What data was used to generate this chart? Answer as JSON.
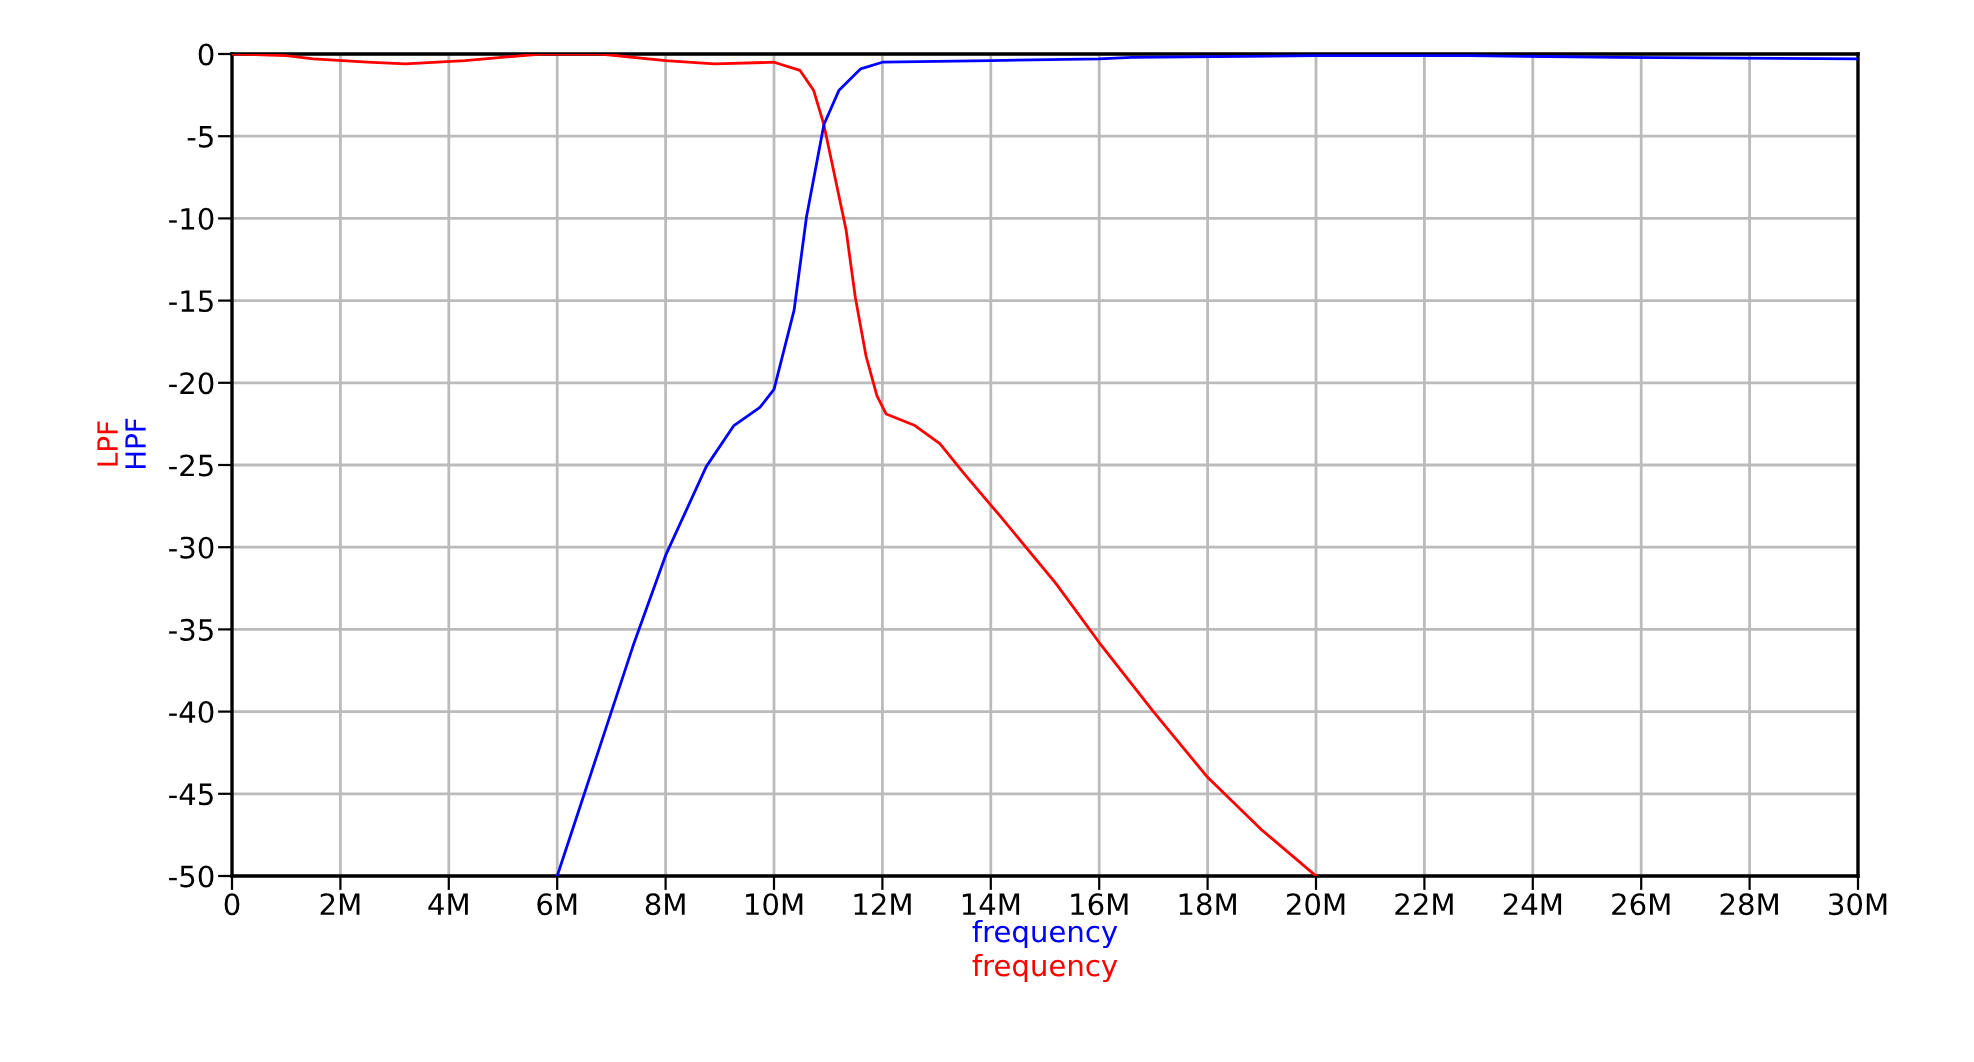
{
  "chart_data": {
    "type": "line",
    "xlabel": "frequency",
    "annotations": [
      "frequency"
    ],
    "x": [
      0,
      1000000,
      1500000,
      2500000,
      3200000,
      4300000,
      5700000,
      6800000,
      8000000,
      8900000,
      10000000,
      10480000,
      10730000,
      10920000,
      11100000,
      11330000,
      11500000,
      11700000,
      11900000,
      12070000,
      12600000,
      13060000,
      13500000,
      14170000,
      15200000,
      16000000,
      17000000,
      18000000,
      19000000,
      20000000
    ],
    "series": [
      {
        "name": "LPF",
        "color": "#ff0000",
        "values": [
          0,
          -0.1,
          -0.3,
          -0.5,
          -0.6,
          -0.4,
          0,
          0,
          -0.4,
          -0.6,
          -0.5,
          -1.0,
          -2.2,
          -4.3,
          -7.1,
          -10.7,
          -14.8,
          -18.4,
          -20.8,
          -21.9,
          -22.6,
          -23.7,
          -25.5,
          -28.1,
          -32.2,
          -35.8,
          -40,
          -44,
          -47.2,
          -50
        ]
      },
      {
        "name": "HPF",
        "color": "#0000ff",
        "x": [
          6000000,
          6400000,
          6790000,
          7400000,
          8000000,
          8750000,
          9260000,
          9740000,
          10000000,
          10370000,
          10600000,
          10920000,
          11200000,
          11600000,
          12000000,
          14000000,
          16000000,
          16600000,
          20000000,
          22800000,
          25600000,
          30000000
        ],
        "values": [
          -50,
          -46,
          -42.1,
          -36,
          -30.5,
          -25.1,
          -22.6,
          -21.5,
          -20.4,
          -15.6,
          -9.9,
          -4.3,
          -2.2,
          -0.9,
          -0.5,
          -0.4,
          -0.3,
          -0.2,
          -0.1,
          -0.1,
          -0.2,
          -0.3
        ]
      }
    ],
    "xlim": [
      0,
      30000000
    ],
    "ylim": [
      -50,
      0
    ],
    "xticks": [
      0,
      {
        "value": 2000000,
        "label": "2M"
      },
      {
        "value": 4000000,
        "label": "4M"
      },
      {
        "value": 6000000,
        "label": "6M"
      },
      {
        "value": 8000000,
        "label": "8M"
      },
      {
        "value": 10000000,
        "label": "10M"
      },
      {
        "value": 12000000,
        "label": "12M"
      },
      {
        "value": 14000000,
        "label": "14M"
      },
      {
        "value": 16000000,
        "label": "16M"
      },
      {
        "value": 18000000,
        "label": "18M"
      },
      {
        "value": 20000000,
        "label": "20M"
      },
      {
        "value": 22000000,
        "label": "22M"
      },
      {
        "value": 24000000,
        "label": "24M"
      },
      {
        "value": 26000000,
        "label": "26M"
      },
      {
        "value": 28000000,
        "label": "28M"
      },
      {
        "value": 30000000,
        "label": "30M"
      }
    ],
    "yticks": [
      -50,
      -45,
      -40,
      -35,
      -30,
      -25,
      -20,
      -15,
      -10,
      -5,
      0
    ],
    "grid": true,
    "line_style": "solid"
  }
}
